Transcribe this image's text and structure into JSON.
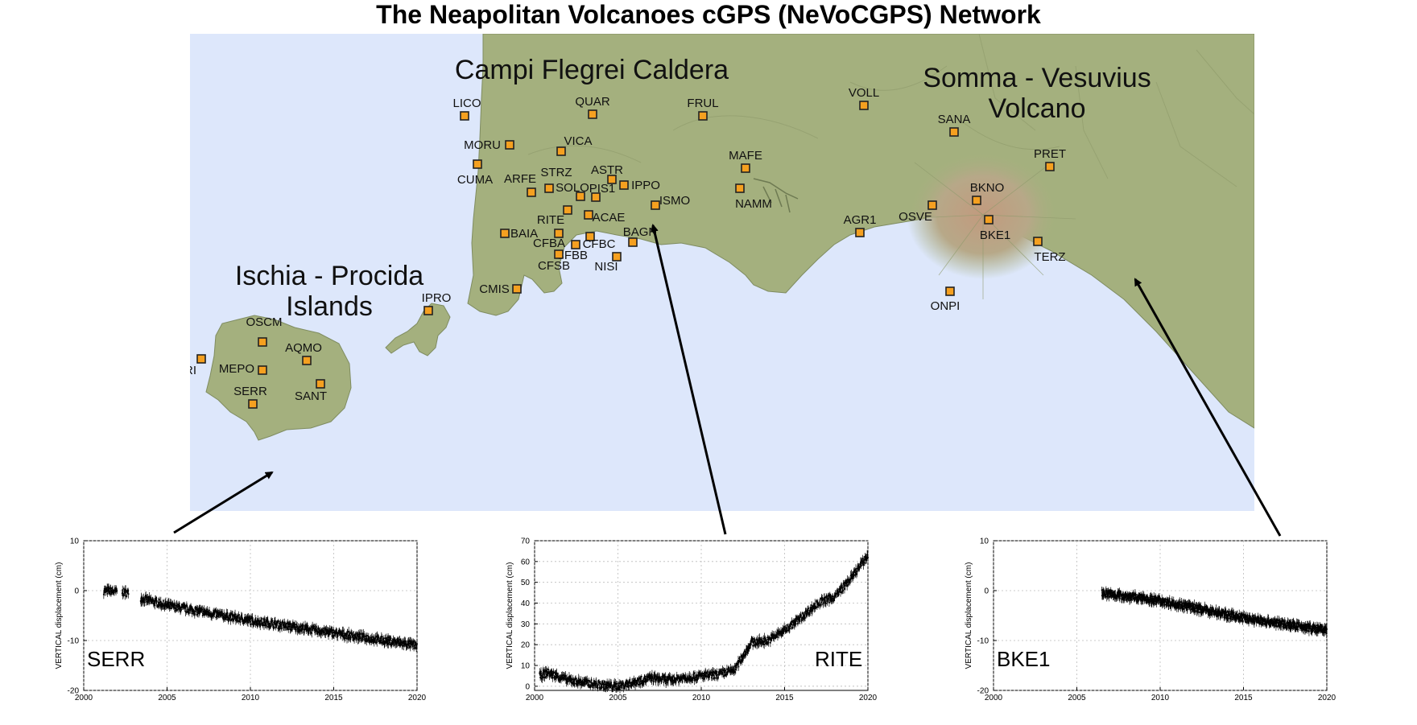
{
  "title": "The Neapolitan Volcanoes cGPS (NeVoCGPS) Network",
  "colors": {
    "sea": "#dde7fb",
    "land": "#a4b07e",
    "marker": "#f5a020",
    "vesuvius": "#b8957a"
  },
  "map": {
    "regions": [
      {
        "id": "campi",
        "lines": [
          "Campi Flegrei Caldera"
        ]
      },
      {
        "id": "vesuvius",
        "lines": [
          "Somma - Vesuvius",
          "Volcano"
        ]
      },
      {
        "id": "ischia",
        "lines": [
          "Ischia - Procida",
          "Islands"
        ]
      }
    ],
    "stations": [
      "LICO",
      "QUAR",
      "FRUL",
      "VOLL",
      "SANA",
      "MORU",
      "VICA",
      "CUMA",
      "ARFE",
      "STRZ",
      "ASTR",
      "SOLO",
      "PIS1",
      "IPPO",
      "MAFE",
      "ISMO",
      "NAMM",
      "PRET",
      "BKNO",
      "OSVE",
      "RITE",
      "ACAE",
      "AGR1",
      "BKE1",
      "BAIA",
      "BAGN",
      "CFBA",
      "CFBC",
      "CFBB",
      "CFSB",
      "NISI",
      "TERZ",
      "CMIS",
      "ONPI",
      "IPRO",
      "OSCM",
      "AQMO",
      "FORI",
      "MEPO",
      "SERR",
      "SANT"
    ]
  },
  "chart_data": [
    {
      "type": "scatter",
      "name": "SERR",
      "ylabel": "VERTICAL displacement (cm)",
      "xlim": [
        2000,
        2020
      ],
      "ylim": [
        -20,
        10
      ],
      "xticks": [
        2000,
        2005,
        2010,
        2015,
        2020
      ],
      "yticks": [
        -20,
        -10,
        0,
        10
      ],
      "trend": {
        "x": [
          2001.2,
          2002.0,
          2002.3,
          2002.7,
          2003.4,
          2005,
          2010,
          2015,
          2020
        ],
        "y": [
          0,
          -0.2,
          -0.3,
          -0.5,
          -1.5,
          -3,
          -6,
          -8.5,
          -11
        ]
      },
      "gaps": [
        [
          2002.0,
          2002.3
        ],
        [
          2002.7,
          2003.4
        ]
      ]
    },
    {
      "type": "scatter",
      "name": "RITE",
      "ylabel": "VERTICAL displacement (cm)",
      "xlim": [
        2000,
        2020
      ],
      "ylim": [
        -2,
        70
      ],
      "xticks": [
        2000,
        2005,
        2010,
        2015,
        2020
      ],
      "yticks": [
        0,
        10,
        20,
        30,
        40,
        50,
        60,
        70
      ],
      "trend": {
        "x": [
          2000.3,
          2000.8,
          2002,
          2004,
          2005,
          2006,
          2007,
          2008,
          2009,
          2010,
          2011,
          2012,
          2013,
          2014,
          2015,
          2016,
          2017,
          2018,
          2019,
          2020
        ],
        "y": [
          5,
          6.5,
          3,
          0.5,
          0,
          2,
          4,
          3,
          4,
          5,
          5.5,
          8,
          21,
          22,
          27,
          33,
          40,
          43,
          52,
          63
        ]
      }
    },
    {
      "type": "scatter",
      "name": "BKE1",
      "ylabel": "VERTICAL displacement (cm)",
      "xlim": [
        2000,
        2020
      ],
      "ylim": [
        -20,
        10
      ],
      "xticks": [
        2000,
        2005,
        2010,
        2015,
        2020
      ],
      "yticks": [
        -20,
        -10,
        0,
        10
      ],
      "trend": {
        "x": [
          2006.5,
          2010,
          2015,
          2020
        ],
        "y": [
          -0.5,
          -2,
          -5.5,
          -8
        ]
      }
    }
  ]
}
